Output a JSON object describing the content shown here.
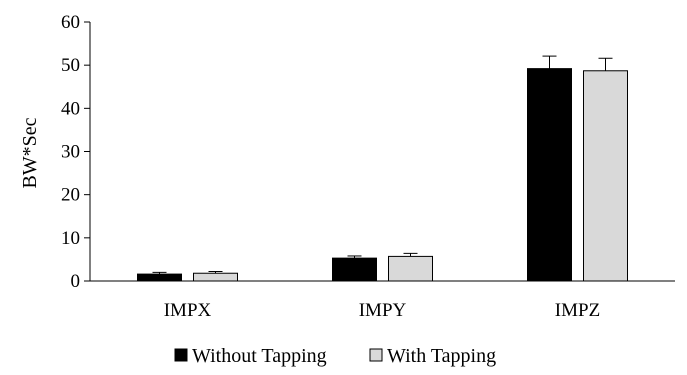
{
  "chart_data": {
    "type": "bar",
    "title": "",
    "xlabel": "",
    "ylabel": "BW*Sec",
    "ylim": [
      0,
      60
    ],
    "yticks": [
      0,
      10,
      20,
      30,
      40,
      50,
      60
    ],
    "categories": [
      "IMPX",
      "IMPY",
      "IMPZ"
    ],
    "series": [
      {
        "name": "Without Tapping",
        "color": "#000000",
        "values": [
          1.6,
          5.3,
          49.2
        ],
        "error": [
          0.4,
          0.5,
          2.9
        ]
      },
      {
        "name": "With Tapping",
        "color": "#d9d9d9",
        "values": [
          1.8,
          5.7,
          48.7
        ],
        "error": [
          0.4,
          0.7,
          2.9
        ]
      }
    ],
    "grid": false,
    "legend_position": "bottom"
  }
}
